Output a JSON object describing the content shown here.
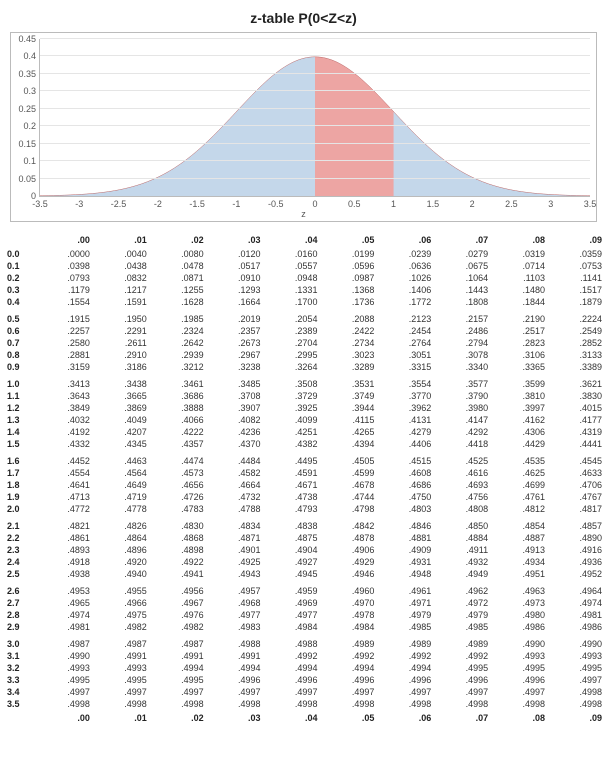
{
  "chart": {
    "title": "z-table P(0<Z<z)",
    "x_axis_title": "z",
    "ylim": [
      0,
      0.45
    ],
    "ytick_step": 0.05,
    "yticks": [
      0,
      0.05,
      0.1,
      0.15,
      0.2,
      0.25,
      0.3,
      0.35,
      0.4,
      0.45
    ],
    "xlim": [
      -3.5,
      3.5
    ],
    "xtick_step": 0.5,
    "xticks": [
      -3.5,
      -3,
      -2.5,
      -2,
      -1.5,
      -1,
      -0.5,
      0,
      0.5,
      1,
      1.5,
      2,
      2.5,
      3,
      3.5
    ],
    "curve_fill_color": "#c4d7ea",
    "curve_line_color": "#bc6868",
    "highlight_range": [
      0,
      1
    ],
    "highlight_fill_color": "#eda5a3",
    "background_color": "#ffffff",
    "grid_color": "#e5e5e5",
    "axis_color": "#bbbbbb",
    "title_fontsize": 14,
    "label_fontsize": 9
  },
  "table": {
    "columns": [
      ".00",
      ".01",
      ".02",
      ".03",
      ".04",
      ".05",
      ".06",
      ".07",
      ".08",
      ".09"
    ],
    "rows": [
      {
        "label": "0.0",
        "cells": [
          ".0000",
          ".0040",
          ".0080",
          ".0120",
          ".0160",
          ".0199",
          ".0239",
          ".0279",
          ".0319",
          ".0359"
        ]
      },
      {
        "label": "0.1",
        "cells": [
          ".0398",
          ".0438",
          ".0478",
          ".0517",
          ".0557",
          ".0596",
          ".0636",
          ".0675",
          ".0714",
          ".0753"
        ]
      },
      {
        "label": "0.2",
        "cells": [
          ".0793",
          ".0832",
          ".0871",
          ".0910",
          ".0948",
          ".0987",
          ".1026",
          ".1064",
          ".1103",
          ".1141"
        ]
      },
      {
        "label": "0.3",
        "cells": [
          ".1179",
          ".1217",
          ".1255",
          ".1293",
          ".1331",
          ".1368",
          ".1406",
          ".1443",
          ".1480",
          ".1517"
        ]
      },
      {
        "label": "0.4",
        "cells": [
          ".1554",
          ".1591",
          ".1628",
          ".1664",
          ".1700",
          ".1736",
          ".1772",
          ".1808",
          ".1844",
          ".1879"
        ]
      },
      {
        "label": "0.5",
        "cells": [
          ".1915",
          ".1950",
          ".1985",
          ".2019",
          ".2054",
          ".2088",
          ".2123",
          ".2157",
          ".2190",
          ".2224"
        ]
      },
      {
        "label": "0.6",
        "cells": [
          ".2257",
          ".2291",
          ".2324",
          ".2357",
          ".2389",
          ".2422",
          ".2454",
          ".2486",
          ".2517",
          ".2549"
        ]
      },
      {
        "label": "0.7",
        "cells": [
          ".2580",
          ".2611",
          ".2642",
          ".2673",
          ".2704",
          ".2734",
          ".2764",
          ".2794",
          ".2823",
          ".2852"
        ]
      },
      {
        "label": "0.8",
        "cells": [
          ".2881",
          ".2910",
          ".2939",
          ".2967",
          ".2995",
          ".3023",
          ".3051",
          ".3078",
          ".3106",
          ".3133"
        ]
      },
      {
        "label": "0.9",
        "cells": [
          ".3159",
          ".3186",
          ".3212",
          ".3238",
          ".3264",
          ".3289",
          ".3315",
          ".3340",
          ".3365",
          ".3389"
        ]
      },
      {
        "label": "1.0",
        "cells": [
          ".3413",
          ".3438",
          ".3461",
          ".3485",
          ".3508",
          ".3531",
          ".3554",
          ".3577",
          ".3599",
          ".3621"
        ]
      },
      {
        "label": "1.1",
        "cells": [
          ".3643",
          ".3665",
          ".3686",
          ".3708",
          ".3729",
          ".3749",
          ".3770",
          ".3790",
          ".3810",
          ".3830"
        ]
      },
      {
        "label": "1.2",
        "cells": [
          ".3849",
          ".3869",
          ".3888",
          ".3907",
          ".3925",
          ".3944",
          ".3962",
          ".3980",
          ".3997",
          ".4015"
        ]
      },
      {
        "label": "1.3",
        "cells": [
          ".4032",
          ".4049",
          ".4066",
          ".4082",
          ".4099",
          ".4115",
          ".4131",
          ".4147",
          ".4162",
          ".4177"
        ]
      },
      {
        "label": "1.4",
        "cells": [
          ".4192",
          ".4207",
          ".4222",
          ".4236",
          ".4251",
          ".4265",
          ".4279",
          ".4292",
          ".4306",
          ".4319"
        ]
      },
      {
        "label": "1.5",
        "cells": [
          ".4332",
          ".4345",
          ".4357",
          ".4370",
          ".4382",
          ".4394",
          ".4406",
          ".4418",
          ".4429",
          ".4441"
        ]
      },
      {
        "label": "1.6",
        "cells": [
          ".4452",
          ".4463",
          ".4474",
          ".4484",
          ".4495",
          ".4505",
          ".4515",
          ".4525",
          ".4535",
          ".4545"
        ]
      },
      {
        "label": "1.7",
        "cells": [
          ".4554",
          ".4564",
          ".4573",
          ".4582",
          ".4591",
          ".4599",
          ".4608",
          ".4616",
          ".4625",
          ".4633"
        ]
      },
      {
        "label": "1.8",
        "cells": [
          ".4641",
          ".4649",
          ".4656",
          ".4664",
          ".4671",
          ".4678",
          ".4686",
          ".4693",
          ".4699",
          ".4706"
        ]
      },
      {
        "label": "1.9",
        "cells": [
          ".4713",
          ".4719",
          ".4726",
          ".4732",
          ".4738",
          ".4744",
          ".4750",
          ".4756",
          ".4761",
          ".4767"
        ]
      },
      {
        "label": "2.0",
        "cells": [
          ".4772",
          ".4778",
          ".4783",
          ".4788",
          ".4793",
          ".4798",
          ".4803",
          ".4808",
          ".4812",
          ".4817"
        ]
      },
      {
        "label": "2.1",
        "cells": [
          ".4821",
          ".4826",
          ".4830",
          ".4834",
          ".4838",
          ".4842",
          ".4846",
          ".4850",
          ".4854",
          ".4857"
        ]
      },
      {
        "label": "2.2",
        "cells": [
          ".4861",
          ".4864",
          ".4868",
          ".4871",
          ".4875",
          ".4878",
          ".4881",
          ".4884",
          ".4887",
          ".4890"
        ]
      },
      {
        "label": "2.3",
        "cells": [
          ".4893",
          ".4896",
          ".4898",
          ".4901",
          ".4904",
          ".4906",
          ".4909",
          ".4911",
          ".4913",
          ".4916"
        ]
      },
      {
        "label": "2.4",
        "cells": [
          ".4918",
          ".4920",
          ".4922",
          ".4925",
          ".4927",
          ".4929",
          ".4931",
          ".4932",
          ".4934",
          ".4936"
        ]
      },
      {
        "label": "2.5",
        "cells": [
          ".4938",
          ".4940",
          ".4941",
          ".4943",
          ".4945",
          ".4946",
          ".4948",
          ".4949",
          ".4951",
          ".4952"
        ]
      },
      {
        "label": "2.6",
        "cells": [
          ".4953",
          ".4955",
          ".4956",
          ".4957",
          ".4959",
          ".4960",
          ".4961",
          ".4962",
          ".4963",
          ".4964"
        ]
      },
      {
        "label": "2.7",
        "cells": [
          ".4965",
          ".4966",
          ".4967",
          ".4968",
          ".4969",
          ".4970",
          ".4971",
          ".4972",
          ".4973",
          ".4974"
        ]
      },
      {
        "label": "2.8",
        "cells": [
          ".4974",
          ".4975",
          ".4976",
          ".4977",
          ".4977",
          ".4978",
          ".4979",
          ".4979",
          ".4980",
          ".4981"
        ]
      },
      {
        "label": "2.9",
        "cells": [
          ".4981",
          ".4982",
          ".4982",
          ".4983",
          ".4984",
          ".4984",
          ".4985",
          ".4985",
          ".4986",
          ".4986"
        ]
      },
      {
        "label": "3.0",
        "cells": [
          ".4987",
          ".4987",
          ".4987",
          ".4988",
          ".4988",
          ".4989",
          ".4989",
          ".4989",
          ".4990",
          ".4990"
        ]
      },
      {
        "label": "3.1",
        "cells": [
          ".4990",
          ".4991",
          ".4991",
          ".4991",
          ".4992",
          ".4992",
          ".4992",
          ".4992",
          ".4993",
          ".4993"
        ]
      },
      {
        "label": "3.2",
        "cells": [
          ".4993",
          ".4993",
          ".4994",
          ".4994",
          ".4994",
          ".4994",
          ".4994",
          ".4995",
          ".4995",
          ".4995"
        ]
      },
      {
        "label": "3.3",
        "cells": [
          ".4995",
          ".4995",
          ".4995",
          ".4996",
          ".4996",
          ".4996",
          ".4996",
          ".4996",
          ".4996",
          ".4997"
        ]
      },
      {
        "label": "3.4",
        "cells": [
          ".4997",
          ".4997",
          ".4997",
          ".4997",
          ".4997",
          ".4997",
          ".4997",
          ".4997",
          ".4997",
          ".4998"
        ]
      },
      {
        "label": "3.5",
        "cells": [
          ".4998",
          ".4998",
          ".4998",
          ".4998",
          ".4998",
          ".4998",
          ".4998",
          ".4998",
          ".4998",
          ".4998"
        ]
      }
    ],
    "group_starts": [
      5,
      10,
      16,
      21,
      26,
      30
    ],
    "footer": [
      ".00",
      ".01",
      ".02",
      ".03",
      ".04",
      ".05",
      ".06",
      ".07",
      ".08",
      ".09"
    ]
  }
}
